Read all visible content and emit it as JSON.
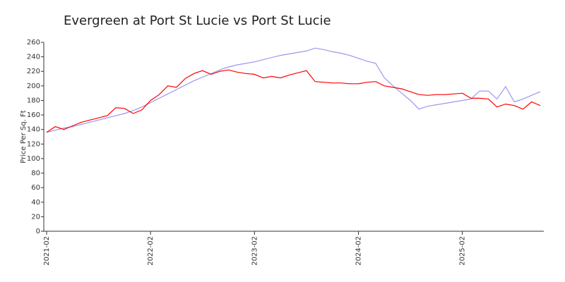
{
  "chart_data": {
    "type": "line",
    "title": "Evergreen at Port St Lucie vs Port St Lucie",
    "y_label": "Price Per Sq. Ft",
    "x": [
      "2021-02",
      "2021-03",
      "2021-04",
      "2021-05",
      "2021-06",
      "2021-07",
      "2021-08",
      "2021-09",
      "2021-10",
      "2021-11",
      "2021-12",
      "2022-01",
      "2022-02",
      "2022-03",
      "2022-04",
      "2022-05",
      "2022-06",
      "2022-07",
      "2022-08",
      "2022-09",
      "2022-10",
      "2022-11",
      "2022-12",
      "2023-01",
      "2023-02",
      "2023-03",
      "2023-04",
      "2023-05",
      "2023-06",
      "2023-07",
      "2023-08",
      "2023-09",
      "2023-10",
      "2023-11",
      "2023-12",
      "2024-01",
      "2024-02",
      "2024-03",
      "2024-04",
      "2024-05",
      "2024-06",
      "2024-07",
      "2024-08",
      "2024-09",
      "2024-10",
      "2024-11",
      "2024-12",
      "2025-01",
      "2025-02",
      "2025-03",
      "2025-04",
      "2025-05",
      "2025-06",
      "2025-07",
      "2025-08",
      "2025-09",
      "2025-10",
      "2025-11"
    ],
    "xticks": [
      "2021-02",
      "2022-02",
      "2023-02",
      "2024-02",
      "2025-02"
    ],
    "series": [
      {
        "color": "#ff0000",
        "values": [
          136,
          144,
          140,
          145,
          150,
          153,
          156,
          159,
          170,
          169,
          162,
          167,
          180,
          188,
          200,
          198,
          210,
          217,
          221,
          216,
          220,
          222,
          219,
          217,
          216,
          211,
          213,
          211,
          215,
          218,
          221,
          206,
          205,
          204,
          204,
          203,
          203,
          205,
          206,
          200,
          198,
          196,
          192,
          188,
          187,
          188,
          188,
          189,
          190,
          183,
          183,
          182,
          171,
          175,
          173,
          168,
          178,
          173
        ]
      },
      {
        "color": "#9999ee",
        "values": [
          136,
          139,
          142,
          144,
          147,
          150,
          153,
          156,
          159,
          162,
          166,
          171,
          177,
          183,
          189,
          195,
          201,
          207,
          212,
          217,
          222,
          226,
          229,
          231,
          233,
          236,
          239,
          242,
          244,
          246,
          248,
          252,
          250,
          247,
          245,
          242,
          238,
          234,
          231,
          211,
          200,
          190,
          180,
          168,
          172,
          174,
          176,
          178,
          180,
          182,
          193,
          193,
          182,
          199,
          178,
          182,
          187,
          192
        ]
      }
    ],
    "ylim": [
      0,
      260
    ],
    "yticks": [
      0,
      20,
      40,
      60,
      80,
      100,
      120,
      140,
      160,
      180,
      200,
      220,
      240,
      260
    ]
  }
}
